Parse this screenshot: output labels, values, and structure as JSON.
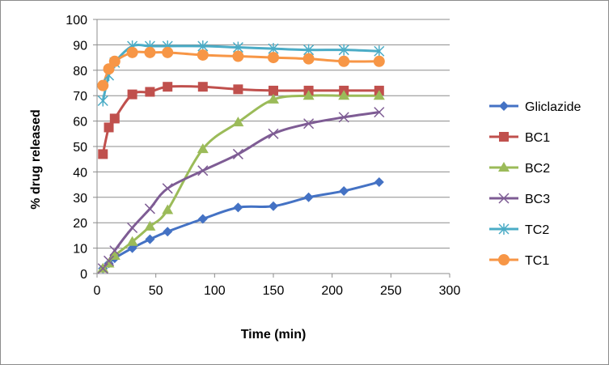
{
  "chart_data": {
    "type": "line",
    "title": "",
    "xlabel": "Time (min)",
    "ylabel": "% drug released",
    "xlim": [
      0,
      300
    ],
    "ylim": [
      0,
      100
    ],
    "xticks": [
      0,
      50,
      100,
      150,
      200,
      250,
      300
    ],
    "yticks": [
      0,
      10,
      20,
      30,
      40,
      50,
      60,
      70,
      80,
      90,
      100
    ],
    "grid": "horizontal",
    "legend": "right",
    "series": [
      {
        "name": "Gliclazide",
        "color": "#4472C4",
        "marker": "diamond",
        "x": [
          5,
          10,
          15,
          30,
          45,
          60,
          90,
          120,
          150,
          180,
          210,
          240
        ],
        "y": [
          2,
          4,
          6,
          10,
          13.5,
          16.5,
          21.5,
          26,
          26.5,
          30,
          32.5,
          36
        ]
      },
      {
        "name": "BC1",
        "color": "#C0504D",
        "marker": "square",
        "x": [
          5,
          10,
          15,
          30,
          45,
          60,
          90,
          120,
          150,
          180,
          210,
          240
        ],
        "y": [
          47,
          57.5,
          61,
          70.5,
          71.5,
          73.5,
          73.5,
          72.5,
          72,
          72,
          72,
          72
        ]
      },
      {
        "name": "BC2",
        "color": "#9BBB59",
        "marker": "triangle",
        "x": [
          5,
          10,
          15,
          30,
          45,
          60,
          90,
          120,
          150,
          180,
          210,
          240
        ],
        "y": [
          2,
          4,
          7,
          12.5,
          18.5,
          25,
          49,
          59.5,
          68.5,
          70,
          70,
          70
        ]
      },
      {
        "name": "BC3",
        "color": "#7E5C94",
        "marker": "x",
        "x": [
          5,
          10,
          15,
          30,
          45,
          60,
          90,
          120,
          150,
          180,
          210,
          240
        ],
        "y": [
          2,
          5,
          9,
          18,
          25.5,
          33.5,
          40.5,
          47,
          55,
          59,
          61.5,
          63.5
        ]
      },
      {
        "name": "TC2",
        "color": "#4BACC6",
        "marker": "star",
        "x": [
          5,
          10,
          15,
          30,
          45,
          60,
          90,
          120,
          150,
          180,
          210,
          240
        ],
        "y": [
          68,
          78,
          83,
          89.5,
          89.5,
          89.5,
          89.5,
          89,
          88.5,
          88,
          88,
          87.5
        ]
      },
      {
        "name": "TC1",
        "color": "#F79646",
        "marker": "circle",
        "x": [
          5,
          10,
          15,
          30,
          45,
          60,
          90,
          120,
          150,
          180,
          210,
          240
        ],
        "y": [
          74,
          80.5,
          83.5,
          87,
          87,
          87,
          86,
          85.5,
          85,
          84.5,
          83.5,
          83.5
        ]
      }
    ]
  }
}
